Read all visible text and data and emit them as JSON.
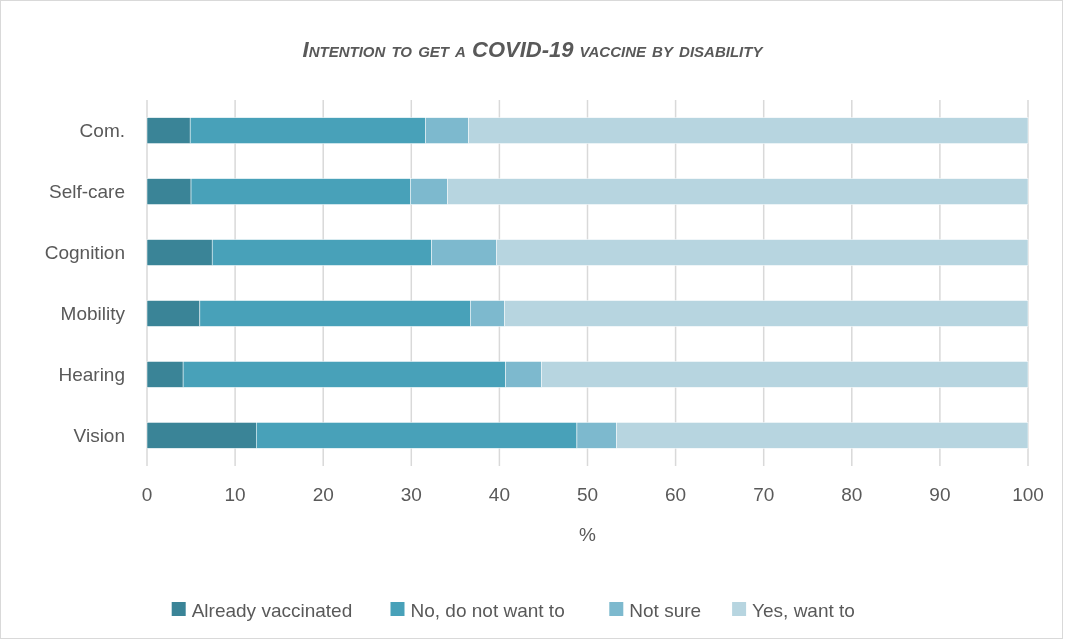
{
  "chart_data": {
    "type": "bar",
    "orientation": "horizontal",
    "stacked": true,
    "title": "Intention to get a COVID-19 vaccine by disability",
    "xlabel": "%",
    "categories": [
      "Com.",
      "Self-care",
      "Cognition",
      "Mobility",
      "Hearing",
      "Vision"
    ],
    "series": [
      {
        "name": "Already vaccinated",
        "color": "#3a8497",
        "values": [
          4.9,
          5.0,
          7.4,
          6.0,
          4.1,
          12.4
        ]
      },
      {
        "name": "No, do not want to",
        "color": "#48a1b9",
        "values": [
          26.7,
          24.9,
          24.9,
          30.7,
          36.6,
          36.4
        ]
      },
      {
        "name": "Not sure",
        "color": "#7db9ce",
        "values": [
          4.9,
          4.2,
          7.4,
          3.9,
          4.1,
          4.5
        ]
      },
      {
        "name": "Yes, want to",
        "color": "#b7d5e0",
        "values": [
          63.5,
          65.9,
          60.3,
          59.4,
          55.2,
          46.7
        ]
      }
    ],
    "xlim": [
      0,
      100
    ],
    "xticks": [
      0,
      10,
      20,
      30,
      40,
      50,
      60,
      70,
      80,
      90,
      100
    ],
    "grid": "x",
    "legend": "bottom"
  }
}
